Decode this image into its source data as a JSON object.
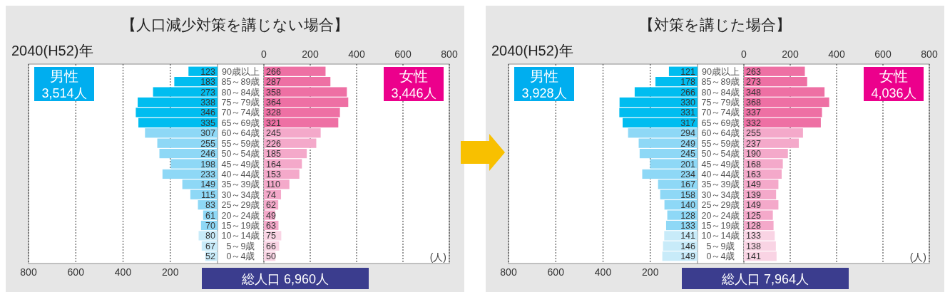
{
  "chart_data": [
    {
      "type": "bar",
      "orientation": "horizontal",
      "title": "【人口減少対策を講じない場合】",
      "subtitle": "2040(H52)年",
      "categories": [
        "90歳以上",
        "85～89歳",
        "80～84歳",
        "75～79歳",
        "70～74歳",
        "65～69歳",
        "60～64歳",
        "55～59歳",
        "50～54歳",
        "45～49歳",
        "40～44歳",
        "35～39歳",
        "30～34歳",
        "25～29歳",
        "20～24歳",
        "15～19歳",
        "10～14歳",
        "5～9歳",
        "0～4歳"
      ],
      "series": [
        {
          "name": "男性",
          "color": "#00aeef",
          "colors": [
            "#00bdf0",
            "#00bdf0",
            "#00bdf0",
            "#00bdf0",
            "#00bdf0",
            "#00bdf0",
            "#8ed8f6",
            "#8ed8f6",
            "#8ed8f6",
            "#8ed8f6",
            "#8ed8f6",
            "#8ed8f6",
            "#8ed8f6",
            "#8ed8f6",
            "#8ed8f6",
            "#8ed8f6",
            "#c8ebf9",
            "#c8ebf9",
            "#c8ebf9"
          ],
          "values": [
            123,
            183,
            273,
            338,
            346,
            335,
            307,
            255,
            246,
            198,
            233,
            149,
            115,
            83,
            61,
            70,
            80,
            67,
            52
          ]
        }
      ],
      "xlim": [
        800,
        0
      ],
      "xticks": [
        800,
        600,
        400,
        200
      ],
      "grid": "x",
      "legend": "top left",
      "data_labels": true,
      "annotations": [
        "3,514人",
        "総人口 6,960人"
      ]
    },
    {
      "type": "bar",
      "orientation": "horizontal",
      "categories": [
        null,
        null,
        null,
        null,
        null,
        null,
        null,
        null,
        null,
        null,
        null,
        null,
        null,
        null,
        null,
        null,
        null,
        null,
        null
      ],
      "series": [
        {
          "name": "女性",
          "color": "#ec008c",
          "colors": [
            "#ee70a4",
            "#ee70a4",
            "#ee70a4",
            "#ee70a4",
            "#ee70a4",
            "#ee70a4",
            "#f4a9ca",
            "#f4a9ca",
            "#f4a9ca",
            "#f4a9ca",
            "#f4a9ca",
            "#f4a9ca",
            "#f4a9ca",
            "#f4a9ca",
            "#f4a9ca",
            "#f4a9ca",
            "#f9d4e4",
            "#f9d4e4",
            "#f9d4e4"
          ],
          "values": [
            266,
            287,
            358,
            364,
            328,
            321,
            245,
            226,
            185,
            164,
            153,
            110,
            74,
            62,
            49,
            63,
            75,
            66,
            50
          ]
        }
      ],
      "xlim": [
        0,
        800
      ],
      "xticks": [
        0,
        200,
        400,
        600,
        800
      ],
      "grid": "x",
      "legend": "top right",
      "data_labels": true,
      "annotations": [
        "3,446人",
        "(人)"
      ]
    },
    {
      "type": "bar",
      "orientation": "horizontal",
      "title": "【対策を講じた場合】",
      "subtitle": "2040(H52)年",
      "categories": [
        "90歳以上",
        "85～89歳",
        "80～84歳",
        "75～79歳",
        "70～74歳",
        "65～69歳",
        "60～64歳",
        "55～59歳",
        "50～54歳",
        "45～49歳",
        "40～44歳",
        "35～39歳",
        "30～34歳",
        "25～29歳",
        "20～24歳",
        "15～19歳",
        "10～14歳",
        "5～9歳",
        "0～4歳"
      ],
      "series": [
        {
          "name": "男性",
          "color": "#00aeef",
          "colors": [
            "#00bdf0",
            "#00bdf0",
            "#00bdf0",
            "#00bdf0",
            "#00bdf0",
            "#00bdf0",
            "#8ed8f6",
            "#8ed8f6",
            "#8ed8f6",
            "#8ed8f6",
            "#8ed8f6",
            "#8ed8f6",
            "#8ed8f6",
            "#8ed8f6",
            "#8ed8f6",
            "#8ed8f6",
            "#c8ebf9",
            "#c8ebf9",
            "#c8ebf9"
          ],
          "values": [
            121,
            178,
            266,
            330,
            331,
            317,
            294,
            249,
            245,
            201,
            234,
            167,
            158,
            140,
            128,
            133,
            141,
            146,
            149
          ]
        }
      ],
      "xlim": [
        800,
        0
      ],
      "xticks": [
        800,
        600,
        400,
        200
      ],
      "grid": "x",
      "legend": "top left",
      "data_labels": true,
      "annotations": [
        "3,928人",
        "総人口 7,964人"
      ]
    },
    {
      "type": "bar",
      "orientation": "horizontal",
      "categories": [
        null,
        null,
        null,
        null,
        null,
        null,
        null,
        null,
        null,
        null,
        null,
        null,
        null,
        null,
        null,
        null,
        null,
        null,
        null
      ],
      "series": [
        {
          "name": "女性",
          "color": "#ec008c",
          "colors": [
            "#ee70a4",
            "#ee70a4",
            "#ee70a4",
            "#ee70a4",
            "#ee70a4",
            "#ee70a4",
            "#f4a9ca",
            "#f4a9ca",
            "#f4a9ca",
            "#f4a9ca",
            "#f4a9ca",
            "#f4a9ca",
            "#f4a9ca",
            "#f4a9ca",
            "#f4a9ca",
            "#f4a9ca",
            "#f9d4e4",
            "#f9d4e4",
            "#f9d4e4"
          ],
          "values": [
            263,
            273,
            348,
            368,
            337,
            332,
            255,
            237,
            190,
            168,
            163,
            149,
            139,
            149,
            125,
            128,
            133,
            138,
            141
          ]
        }
      ],
      "xlim": [
        0,
        800
      ],
      "xticks": [
        0,
        200,
        400,
        600,
        800
      ],
      "grid": "x",
      "legend": "top right",
      "data_labels": true,
      "annotations": [
        "4,036人",
        "(人)"
      ]
    }
  ]
}
